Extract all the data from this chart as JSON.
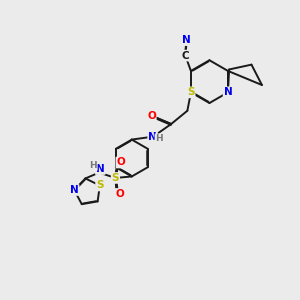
{
  "bg_color": "#ebebeb",
  "bond_color": "#1a1a1a",
  "atom_colors": {
    "N": "#0000ee",
    "O": "#ff0000",
    "S": "#bbbb00",
    "H": "#777777",
    "C": "#1a1a1a"
  },
  "figsize": [
    3.0,
    3.0
  ],
  "dpi": 100,
  "lw": 1.4,
  "lw2": 1.1,
  "fs": 7.5,
  "fs_small": 6.5,
  "off_in": 0.025
}
